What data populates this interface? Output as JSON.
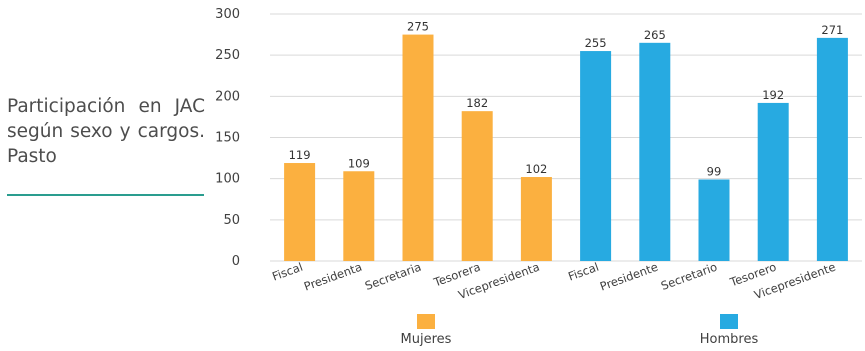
{
  "side_title": "Participación en JAC según sexo y cargos. Pasto",
  "chart_data": {
    "type": "bar",
    "categories": [
      "Fiscal",
      "Presidenta",
      "Secretaria",
      "Tesorera",
      "Vicepresidenta",
      "Fiscal",
      "Presidente",
      "Secretario",
      "Tesorero",
      "Vicepresidente"
    ],
    "values": [
      119,
      109,
      275,
      182,
      102,
      255,
      265,
      99,
      192,
      271
    ],
    "groups": [
      "Mujeres",
      "Mujeres",
      "Mujeres",
      "Mujeres",
      "Mujeres",
      "Hombres",
      "Hombres",
      "Hombres",
      "Hombres",
      "Hombres"
    ],
    "legend": [
      {
        "name": "Mujeres",
        "color": "#fbb040"
      },
      {
        "name": "Hombres",
        "color": "#27aae1"
      }
    ],
    "ylim": [
      0,
      300
    ],
    "yticks": [
      0,
      50,
      100,
      150,
      200,
      250,
      300
    ],
    "grid": true,
    "data_labels": true,
    "legend_position": "bottom"
  }
}
